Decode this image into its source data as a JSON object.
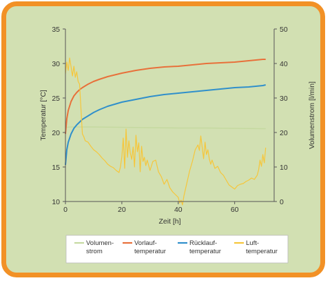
{
  "chart_data": {
    "type": "line",
    "xlabel": "Zeit [h]",
    "ylabel_left": "Temperatur [°C]",
    "ylabel_right": "Volumenstrom [l/min]",
    "x_ticks": [
      "0",
      "20",
      "40",
      "60"
    ],
    "y_left_ticks": [
      "10",
      "15",
      "20",
      "25",
      "30",
      "35"
    ],
    "y_right_ticks": [
      "0",
      "10",
      "20",
      "30",
      "40",
      "50"
    ],
    "xlim": [
      0,
      74
    ],
    "ylim_left": [
      10,
      35
    ],
    "ylim_right": [
      0,
      50
    ],
    "grid": false,
    "legend_position": "bottom",
    "series": [
      {
        "name": [
          "Volumen-",
          "strom"
        ],
        "axis": "right",
        "color": "#c5d9a0",
        "width": 1.6,
        "x": [
          0,
          2,
          5,
          10,
          20,
          30,
          40,
          50,
          60,
          70,
          71
        ],
        "y": [
          21.5,
          21.6,
          21.6,
          21.6,
          21.5,
          21.4,
          21.3,
          21.3,
          21.2,
          21.1,
          21.1
        ]
      },
      {
        "name": [
          "Vorlauf-",
          "temperatur"
        ],
        "axis": "left",
        "color": "#e8703a",
        "width": 2,
        "x": [
          0,
          0.5,
          1,
          2,
          3,
          4,
          5,
          6,
          8,
          10,
          12,
          15,
          20,
          25,
          30,
          35,
          40,
          45,
          50,
          55,
          60,
          65,
          70,
          71
        ],
        "y": [
          19.8,
          22,
          23.2,
          24.5,
          25.3,
          25.8,
          26.2,
          26.5,
          27.0,
          27.4,
          27.7,
          28.1,
          28.6,
          29.0,
          29.3,
          29.5,
          29.6,
          29.8,
          30.0,
          30.1,
          30.2,
          30.4,
          30.6,
          30.6
        ]
      },
      {
        "name": [
          "Rücklauf-",
          "temperatur"
        ],
        "axis": "left",
        "color": "#2f8fcb",
        "width": 2,
        "x": [
          0,
          0.5,
          1,
          2,
          3,
          4,
          5,
          6,
          8,
          10,
          12,
          15,
          20,
          25,
          30,
          35,
          40,
          45,
          50,
          55,
          60,
          65,
          70,
          71
        ],
        "y": [
          15.3,
          17.5,
          18.6,
          19.8,
          20.6,
          21.1,
          21.5,
          21.9,
          22.4,
          22.9,
          23.3,
          23.8,
          24.4,
          24.8,
          25.2,
          25.5,
          25.7,
          25.9,
          26.1,
          26.3,
          26.5,
          26.6,
          26.8,
          26.9
        ]
      },
      {
        "name": [
          "Luft-",
          "temperatur"
        ],
        "axis": "left",
        "color": "#f6c63a",
        "width": 1.2,
        "x": [
          0,
          0.5,
          1,
          1.5,
          2,
          2.5,
          3,
          3.5,
          4,
          4.5,
          5,
          5.5,
          6,
          6.5,
          7,
          8,
          9,
          10,
          11,
          12,
          13,
          14,
          15,
          16,
          17,
          18,
          19,
          19.5,
          20,
          20.5,
          21,
          21.5,
          22,
          22.5,
          23,
          23.5,
          24,
          24.5,
          25,
          25.5,
          26,
          26.5,
          27,
          27.5,
          28,
          28.5,
          29,
          30,
          31,
          32,
          33,
          34,
          35,
          36,
          37,
          38,
          39,
          40,
          40.5,
          41,
          41.5,
          42,
          43,
          44,
          45,
          46,
          47,
          47.5,
          48,
          48.5,
          49,
          49.5,
          50,
          50.5,
          51,
          51.5,
          52,
          53,
          54,
          55,
          56,
          57,
          58,
          59,
          60,
          61,
          62,
          63,
          64,
          65,
          66,
          67,
          68,
          68.5,
          69,
          69.5,
          70,
          70.5,
          71
        ],
        "y": [
          28.5,
          30.2,
          29.0,
          30.8,
          29.5,
          28.2,
          29.6,
          28.0,
          28.8,
          27.4,
          27.0,
          23.5,
          19.8,
          19.4,
          18.8,
          18.6,
          18.0,
          17.5,
          17.2,
          16.8,
          16.3,
          15.9,
          15.4,
          15.1,
          14.9,
          14.5,
          14.2,
          15.0,
          16.5,
          19.2,
          14.8,
          20.5,
          16.4,
          18.8,
          17.0,
          16.1,
          17.9,
          15.0,
          19.6,
          17.2,
          18.5,
          14.3,
          18.0,
          15.8,
          16.4,
          15.2,
          16.0,
          14.5,
          15.8,
          16.0,
          14.3,
          13.6,
          12.5,
          13.2,
          12.0,
          11.4,
          11.0,
          10.6,
          9.8,
          10.2,
          9.5,
          10.8,
          12.6,
          14.4,
          15.8,
          17.5,
          18.2,
          17.4,
          19.5,
          17.8,
          16.2,
          18.6,
          16.8,
          17.5,
          16.2,
          15.4,
          16.0,
          14.8,
          15.1,
          14.2,
          13.8,
          13.1,
          12.4,
          12.1,
          11.8,
          12.3,
          12.5,
          12.6,
          12.9,
          13.1,
          13.4,
          13.2,
          13.8,
          14.6,
          16.0,
          15.1,
          16.8,
          15.6,
          17.8
        ]
      }
    ]
  }
}
